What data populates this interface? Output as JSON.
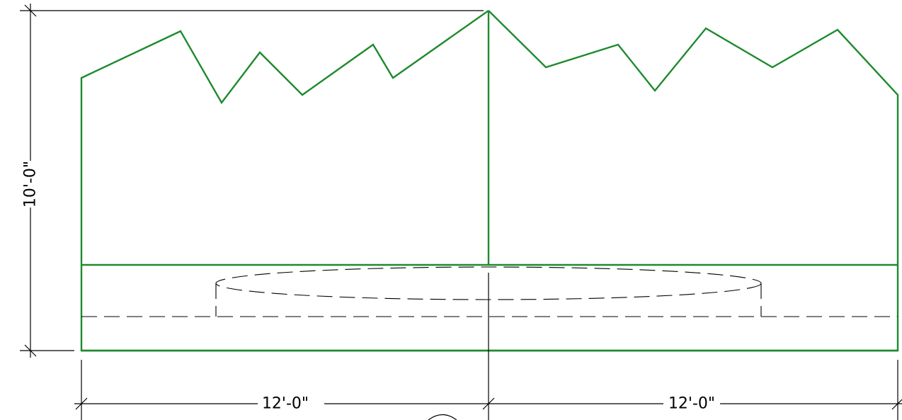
{
  "dimensions": {
    "height_label": "10'-0\"",
    "left_width_label": "12'-0\"",
    "right_width_label": "12'-0\""
  },
  "colors": {
    "wall_outline": "#1e8a2e",
    "hidden_lines": "#000000",
    "dimension_lines": "#000000"
  },
  "icons": {
    "tick": "diagonal-tick-mark"
  }
}
